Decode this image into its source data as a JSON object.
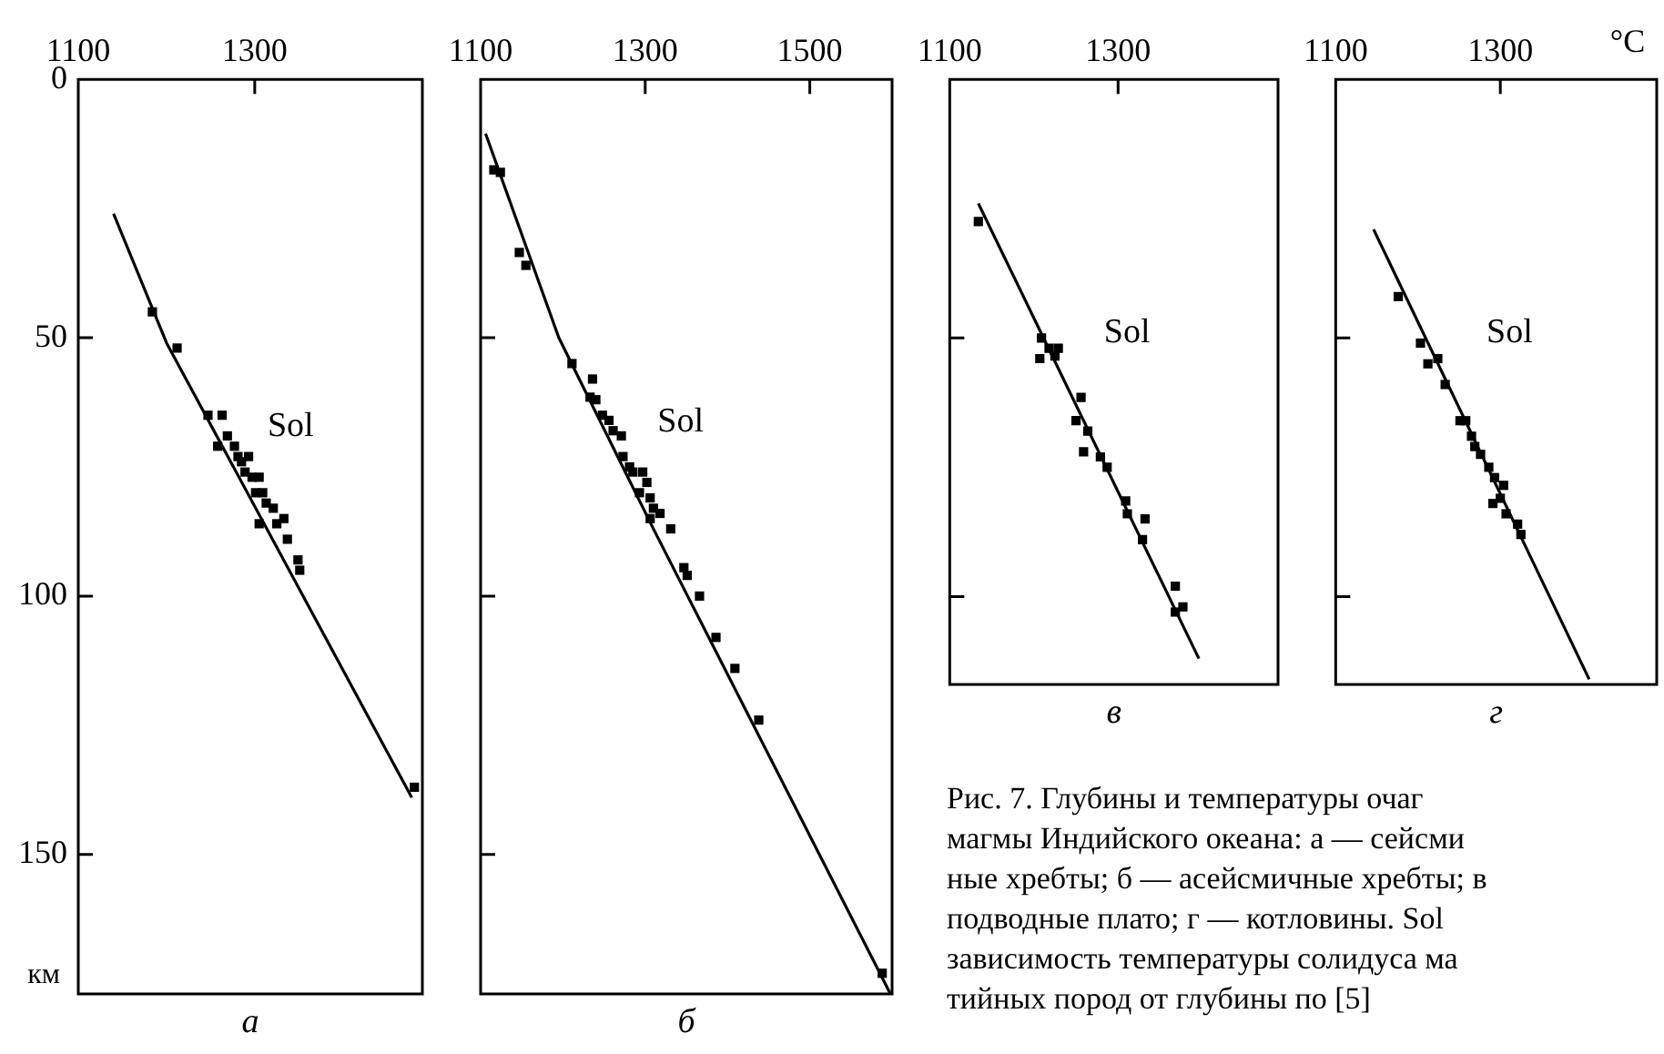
{
  "chart_data": [
    {
      "type": "scatter",
      "title": "а",
      "ylabel": "км",
      "xlim": [
        1100,
        1490
      ],
      "xticks": [
        1100,
        1300
      ],
      "ylim": [
        177,
        0
      ],
      "yticks": [
        0,
        50,
        100,
        150
      ],
      "annotations": [
        "Sol"
      ],
      "series": [
        {
          "type": "line",
          "color": "#000000",
          "marker": "none",
          "x": [
            1140,
            1200,
            1478
          ],
          "values": [
            26,
            51,
            139
          ]
        },
        {
          "type": "scatter",
          "color": "#000000",
          "marker": "square",
          "x": [
            1184,
            1212,
            1247,
            1263,
            1269,
            1258,
            1277,
            1281,
            1285,
            1293,
            1289,
            1297,
            1305,
            1301,
            1309,
            1313,
            1321,
            1305,
            1325,
            1333,
            1337,
            1349,
            1351,
            1481
          ],
          "values": [
            45,
            52,
            65,
            65,
            69,
            71,
            71,
            73,
            74,
            73,
            76,
            77,
            77,
            80,
            80,
            82,
            83,
            86,
            86,
            85,
            89,
            93,
            95,
            137
          ]
        }
      ]
    },
    {
      "type": "scatter",
      "title": "б",
      "xlim": [
        1100,
        1600
      ],
      "xticks": [
        1100,
        1300,
        1500
      ],
      "ylim": [
        177,
        0
      ],
      "yticks": [
        0,
        50,
        100,
        150
      ],
      "tick_labels": "x",
      "annotations": [
        "Sol"
      ],
      "series": [
        {
          "type": "line",
          "color": "#000000",
          "marker": "none",
          "x": [
            1106,
            1195,
            1310,
            1598
          ],
          "values": [
            10.5,
            50,
            87,
            177
          ]
        },
        {
          "type": "scatter",
          "color": "#000000",
          "marker": "square",
          "x": [
            1116,
            1124,
            1147,
            1155,
            1211,
            1236,
            1233,
            1240,
            1248,
            1256,
            1261,
            1271,
            1273,
            1281,
            1285,
            1297,
            1302,
            1293,
            1306,
            1310,
            1318,
            1306,
            1331,
            1347,
            1351,
            1366,
            1386,
            1409,
            1438,
            1588
          ],
          "values": [
            17.5,
            18,
            33.5,
            36,
            55,
            58,
            61.5,
            62,
            65,
            66,
            68,
            69,
            73,
            75,
            76,
            76,
            78,
            80,
            81,
            83,
            84,
            85,
            87,
            94.5,
            96,
            100,
            108,
            114,
            124,
            173
          ]
        }
      ]
    },
    {
      "type": "scatter",
      "title": "в",
      "xlim": [
        1100,
        1490
      ],
      "xticks": [
        1100,
        1300
      ],
      "ylim": [
        117,
        0
      ],
      "yticks": [
        0,
        50,
        100
      ],
      "tick_labels": "x",
      "annotations": [
        "Sol"
      ],
      "series": [
        {
          "type": "line",
          "color": "#000000",
          "marker": "none",
          "x": [
            1134,
            1396
          ],
          "values": [
            24,
            112
          ]
        },
        {
          "type": "scatter",
          "color": "#000000",
          "marker": "square",
          "x": [
            1134,
            1209,
            1218,
            1225,
            1229,
            1207,
            1256,
            1250,
            1264,
            1259,
            1279,
            1287,
            1309,
            1311,
            1332,
            1329,
            1368,
            1368,
            1377
          ],
          "values": [
            27.5,
            50,
            52,
            53.5,
            52,
            54,
            61.5,
            66,
            68,
            72,
            73,
            75,
            81.5,
            84,
            85,
            89,
            98,
            103,
            102
          ]
        }
      ]
    },
    {
      "type": "scatter",
      "title": "г",
      "xlabel": "°C",
      "xlim": [
        1100,
        1490
      ],
      "xticks": [
        1100,
        1300
      ],
      "ylim": [
        117,
        0
      ],
      "yticks": [
        0,
        50,
        100
      ],
      "tick_labels": "x",
      "annotations": [
        "Sol"
      ],
      "series": [
        {
          "type": "line",
          "color": "#000000",
          "marker": "none",
          "x": [
            1146,
            1408
          ],
          "values": [
            29,
            116
          ]
        },
        {
          "type": "scatter",
          "color": "#000000",
          "marker": "square",
          "x": [
            1176,
            1203,
            1212,
            1224,
            1233,
            1251,
            1258,
            1265,
            1269,
            1276,
            1286,
            1293,
            1304,
            1291,
            1300,
            1307,
            1321,
            1325
          ],
          "values": [
            42,
            51,
            55,
            54,
            59,
            66,
            66,
            69,
            71,
            72.5,
            75,
            77,
            78.5,
            82,
            81,
            84,
            86,
            88
          ]
        }
      ]
    },
    {
      "type": "other",
      "annotations": [
        "Рис. 7. Глубины и температуры очаг",
        "магмы Индийского океана: а — сейсми",
        "ные хребты; б — асейсмичные хребты; в",
        "подводные плато; г — котловины. Sol",
        "зависимость температуры солидуса ма",
        "тийных пород от глубины по [5]"
      ]
    }
  ]
}
